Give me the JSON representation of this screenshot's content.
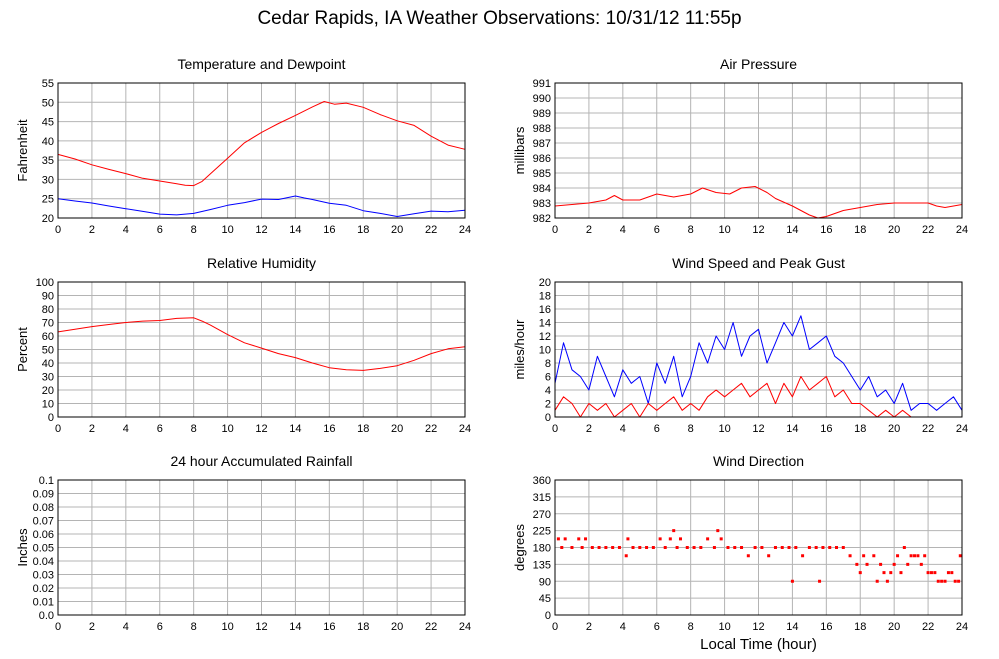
{
  "page": {
    "title": "Cedar Rapids, IA Weather Observations: 10/31/12 11:55p"
  },
  "chart_data": [
    {
      "id": "temp",
      "type": "line",
      "title": "Temperature and Dewpoint",
      "xlabel": "",
      "ylabel": "Fahrenheit",
      "xlim": [
        0,
        24
      ],
      "ylim": [
        20,
        55
      ],
      "xticks": [
        0,
        2,
        4,
        6,
        8,
        10,
        12,
        14,
        16,
        18,
        20,
        22,
        24
      ],
      "yticks": [
        "20",
        "25",
        "30",
        "35",
        "40",
        "45",
        "50",
        "55"
      ],
      "grid": true,
      "series": [
        {
          "color": "#ff0000",
          "x": [
            0,
            1,
            2,
            3,
            4,
            5,
            6,
            7,
            7.5,
            8,
            8.5,
            9,
            10,
            11,
            12,
            13,
            14,
            15,
            15.7,
            16.3,
            17,
            18,
            19,
            20,
            21,
            22,
            23,
            24
          ],
          "y": [
            36.5,
            35.3,
            33.8,
            32.6,
            31.5,
            30.3,
            29.6,
            28.9,
            28.5,
            28.4,
            29.5,
            31.5,
            35.5,
            39.5,
            42.2,
            44.5,
            46.6,
            48.8,
            50.2,
            49.5,
            49.8,
            48.7,
            46.8,
            45.2,
            44.0,
            41.2,
            38.9,
            37.8
          ]
        },
        {
          "color": "#0000ff",
          "x": [
            0,
            1,
            2,
            3,
            4,
            5,
            6,
            7,
            8,
            9,
            10,
            11,
            12,
            13,
            14,
            14.5,
            15,
            16,
            17,
            18,
            19,
            20,
            21,
            22,
            23,
            24
          ],
          "y": [
            25.0,
            24.4,
            23.9,
            23.1,
            22.4,
            21.7,
            21.0,
            20.8,
            21.2,
            22.2,
            23.3,
            24.0,
            24.9,
            24.8,
            25.7,
            25.2,
            24.8,
            23.8,
            23.3,
            21.9,
            21.2,
            20.4,
            21.1,
            21.8,
            21.6,
            22.0
          ]
        }
      ]
    },
    {
      "id": "pres",
      "type": "line",
      "title": "Air Pressure",
      "xlabel": "",
      "ylabel": "millibars",
      "xlim": [
        0,
        24
      ],
      "ylim": [
        982,
        991
      ],
      "xticks": [
        0,
        2,
        4,
        6,
        8,
        10,
        12,
        14,
        16,
        18,
        20,
        22,
        24
      ],
      "yticks": [
        "982",
        "983",
        "984",
        "985",
        "986",
        "987",
        "988",
        "989",
        "990",
        "991"
      ],
      "grid": true,
      "series": [
        {
          "color": "#ff0000",
          "x": [
            0,
            1,
            2,
            3,
            3.5,
            4,
            5,
            6,
            7,
            8,
            8.7,
            9.5,
            10.3,
            11,
            11.8,
            12.5,
            13,
            14,
            15,
            15.5,
            16,
            17,
            18,
            19,
            20,
            21,
            22,
            22.5,
            23,
            24
          ],
          "y": [
            982.8,
            982.9,
            983.0,
            983.2,
            983.5,
            983.2,
            983.2,
            983.6,
            983.4,
            983.6,
            984.0,
            983.7,
            983.6,
            984.0,
            984.1,
            983.7,
            983.3,
            982.8,
            982.2,
            982.0,
            982.1,
            982.5,
            982.7,
            982.9,
            983.0,
            983.0,
            983.0,
            982.8,
            982.7,
            982.9
          ]
        }
      ]
    },
    {
      "id": "rh",
      "type": "line",
      "title": "Relative Humidity",
      "xlabel": "",
      "ylabel": "Percent",
      "xlim": [
        0,
        24
      ],
      "ylim": [
        0,
        100
      ],
      "xticks": [
        0,
        2,
        4,
        6,
        8,
        10,
        12,
        14,
        16,
        18,
        20,
        22,
        24
      ],
      "yticks": [
        "0",
        "10",
        "20",
        "30",
        "40",
        "50",
        "60",
        "70",
        "80",
        "90",
        "100"
      ],
      "grid": true,
      "series": [
        {
          "color": "#ff0000",
          "x": [
            0,
            1,
            2,
            3,
            4,
            5,
            6,
            7,
            8,
            8.5,
            9,
            10,
            11,
            12,
            13,
            14,
            15,
            16,
            17,
            18,
            19,
            20,
            21,
            22,
            23,
            24
          ],
          "y": [
            63,
            65,
            67,
            68.5,
            70,
            71,
            71.5,
            73,
            73.5,
            71,
            68,
            61,
            55,
            51,
            47,
            44,
            40,
            36.5,
            35,
            34.5,
            36,
            38,
            42,
            47,
            50.5,
            52
          ]
        }
      ]
    },
    {
      "id": "wind",
      "type": "line",
      "title": "Wind Speed and Peak Gust",
      "xlabel": "",
      "ylabel": "miles/hour",
      "xlim": [
        0,
        24
      ],
      "ylim": [
        0,
        20
      ],
      "xticks": [
        0,
        2,
        4,
        6,
        8,
        10,
        12,
        14,
        16,
        18,
        20,
        22,
        24
      ],
      "yticks": [
        "0",
        "2",
        "4",
        "6",
        "8",
        "10",
        "12",
        "14",
        "16",
        "18",
        "20"
      ],
      "grid": true,
      "series": [
        {
          "color": "#0000ff",
          "x": [
            0,
            0.5,
            1,
            1.5,
            2,
            2.5,
            3,
            3.5,
            4,
            4.5,
            5,
            5.5,
            6,
            6.5,
            7,
            7.5,
            8,
            8.5,
            9,
            9.5,
            10,
            10.5,
            11,
            11.5,
            12,
            12.5,
            13,
            13.5,
            14,
            14.5,
            15,
            15.5,
            16,
            16.5,
            17,
            17.5,
            18,
            18.5,
            19,
            19.5,
            20,
            20.5,
            21,
            21.5,
            22,
            22.5,
            23,
            23.5,
            24
          ],
          "y": [
            5,
            11,
            7,
            6,
            4,
            9,
            6,
            3,
            7,
            5,
            6,
            2,
            8,
            5,
            9,
            3,
            6,
            11,
            8,
            12,
            10,
            14,
            9,
            12,
            13,
            8,
            11,
            14,
            12,
            15,
            10,
            11,
            12,
            9,
            8,
            6,
            4,
            6,
            3,
            4,
            2,
            5,
            1,
            2,
            2,
            1,
            2,
            3,
            1
          ]
        },
        {
          "color": "#ff0000",
          "x": [
            0,
            0.5,
            1,
            1.5,
            2,
            2.5,
            3,
            3.5,
            4,
            4.5,
            5,
            5.5,
            6,
            6.5,
            7,
            7.5,
            8,
            8.5,
            9,
            9.5,
            10,
            10.5,
            11,
            11.5,
            12,
            12.5,
            13,
            13.5,
            14,
            14.5,
            15,
            15.5,
            16,
            16.5,
            17,
            17.5,
            18,
            18.5,
            19,
            19.5,
            20,
            20.5,
            21,
            22,
            23,
            24
          ],
          "y": [
            1,
            3,
            2,
            0,
            2,
            1,
            2,
            0,
            1,
            2,
            0,
            2,
            1,
            2,
            3,
            1,
            2,
            1,
            3,
            4,
            3,
            4,
            5,
            3,
            4,
            5,
            2,
            5,
            3,
            6,
            4,
            5,
            6,
            3,
            4,
            2,
            2,
            1,
            0,
            1,
            0,
            1,
            0,
            0,
            0,
            0
          ]
        }
      ]
    },
    {
      "id": "rain",
      "type": "line",
      "title": "24 hour Accumulated Rainfall",
      "xlabel": "",
      "ylabel": "Inches",
      "xlim": [
        0,
        24
      ],
      "ylim": [
        0,
        0.1
      ],
      "xticks": [
        0,
        2,
        4,
        6,
        8,
        10,
        12,
        14,
        16,
        18,
        20,
        22,
        24
      ],
      "yticks": [
        "0.0",
        "0.01",
        "0.02",
        "0.03",
        "0.04",
        "0.05",
        "0.06",
        "0.07",
        "0.08",
        "0.09",
        "0.1"
      ],
      "grid": true,
      "series": [
        {
          "color": "#ff0000",
          "x": [
            0,
            24
          ],
          "y": [
            0,
            0
          ]
        }
      ]
    },
    {
      "id": "dir",
      "type": "scatter",
      "title": "Wind Direction",
      "xlabel": "Local Time (hour)",
      "ylabel": "degrees",
      "xlim": [
        0,
        24
      ],
      "ylim": [
        0,
        360
      ],
      "xticks": [
        0,
        2,
        4,
        6,
        8,
        10,
        12,
        14,
        16,
        18,
        20,
        22,
        24
      ],
      "yticks": [
        "0",
        "45",
        "90",
        "135",
        "180",
        "225",
        "270",
        "315",
        "360"
      ],
      "grid": true,
      "series": [
        {
          "color": "#ff0000",
          "x": [
            0.2,
            0.4,
            0.6,
            1.0,
            1.4,
            1.6,
            1.8,
            2.2,
            2.6,
            3.0,
            3.4,
            3.8,
            4.2,
            4.3,
            4.6,
            5.0,
            5.4,
            5.8,
            6.2,
            6.5,
            6.8,
            7.0,
            7.2,
            7.4,
            7.8,
            8.2,
            8.6,
            9.0,
            9.4,
            9.6,
            9.8,
            10.2,
            10.6,
            11.0,
            11.4,
            11.8,
            12.2,
            12.6,
            13.0,
            13.4,
            13.8,
            14.0,
            14.2,
            14.6,
            15.0,
            15.4,
            15.6,
            15.8,
            16.2,
            16.6,
            17.0,
            17.4,
            17.8,
            18.0,
            18.2,
            18.4,
            18.8,
            19.0,
            19.2,
            19.4,
            19.6,
            19.8,
            20.0,
            20.2,
            20.4,
            20.6,
            20.8,
            21.0,
            21.2,
            21.4,
            21.6,
            21.8,
            22.0,
            22.2,
            22.4,
            22.6,
            22.8,
            23.0,
            23.2,
            23.4,
            23.6,
            23.8,
            23.9
          ],
          "y": [
            203,
            180,
            203,
            180,
            203,
            180,
            203,
            180,
            180,
            180,
            180,
            180,
            158,
            203,
            180,
            180,
            180,
            180,
            203,
            180,
            203,
            225,
            180,
            203,
            180,
            180,
            180,
            203,
            180,
            225,
            203,
            180,
            180,
            180,
            158,
            180,
            180,
            158,
            180,
            180,
            180,
            90,
            180,
            158,
            180,
            180,
            90,
            180,
            180,
            180,
            180,
            158,
            135,
            113,
            158,
            135,
            158,
            90,
            135,
            113,
            90,
            113,
            135,
            158,
            113,
            180,
            135,
            158,
            158,
            158,
            135,
            158,
            113,
            113,
            113,
            90,
            90,
            90,
            113,
            113,
            90,
            90,
            158
          ]
        }
      ]
    }
  ]
}
